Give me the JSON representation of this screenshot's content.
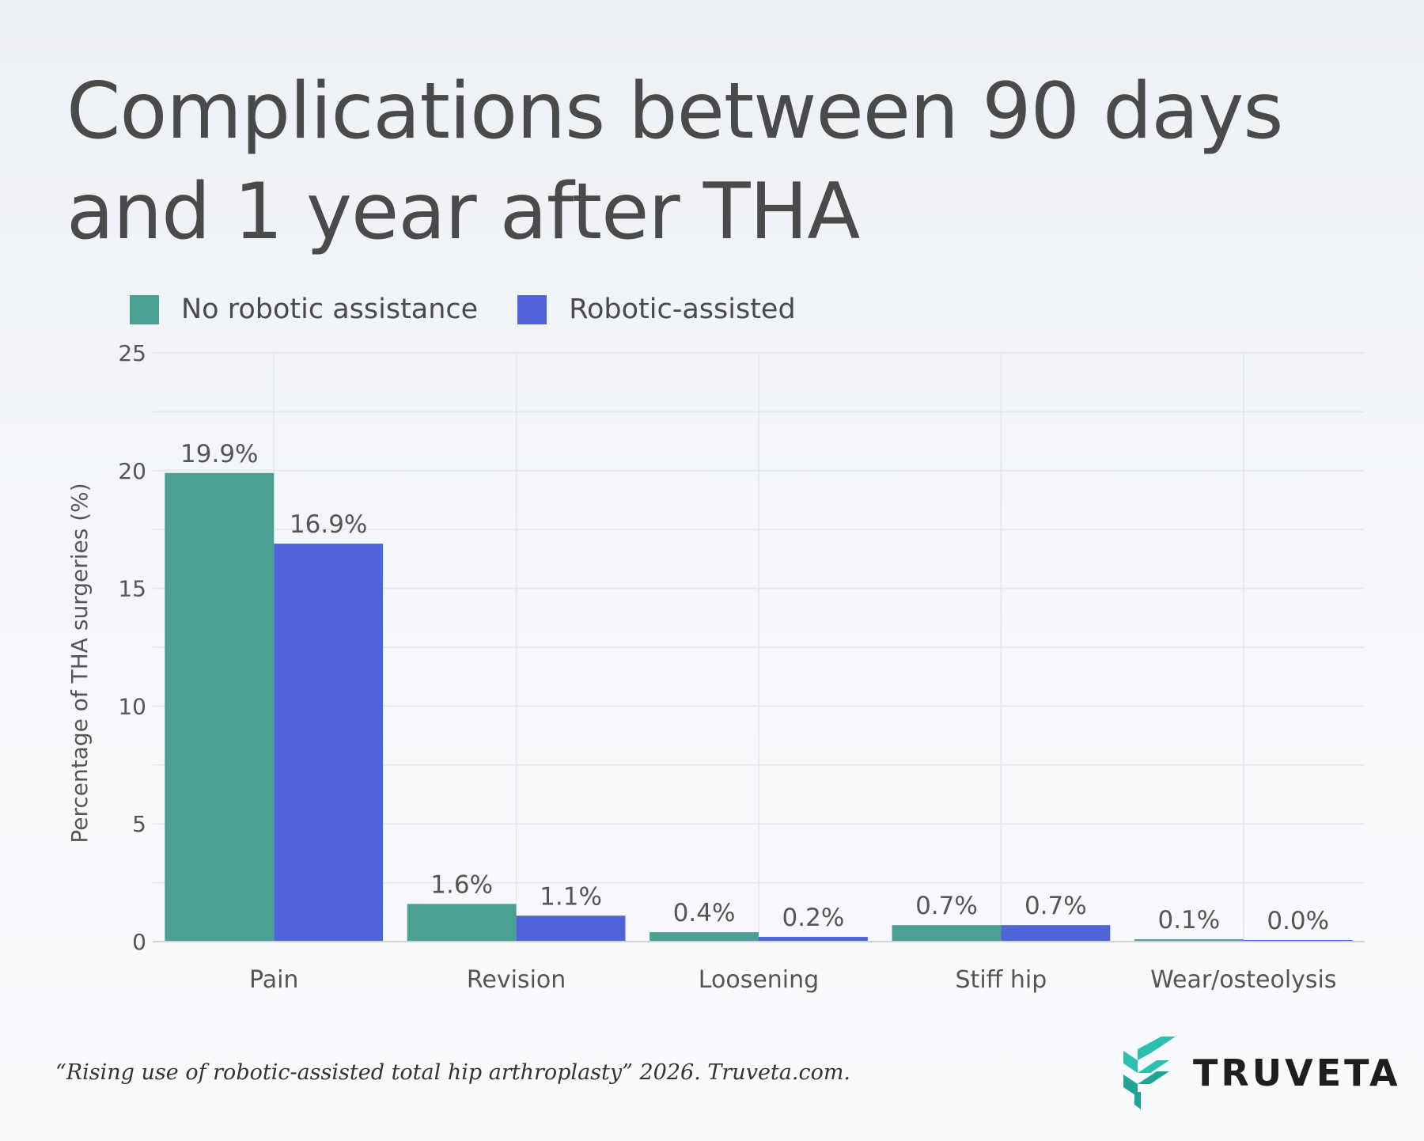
{
  "title": {
    "line1": "Complications between 90 days",
    "line2": "and 1 year after THA"
  },
  "legend": {
    "items": [
      {
        "label": "No robotic assistance",
        "color": "#4aa193"
      },
      {
        "label": "Robotic-assisted",
        "color": "#4e64d7"
      }
    ]
  },
  "chart_data": {
    "type": "bar",
    "categories": [
      "Pain",
      "Revision",
      "Loosening",
      "Stiff hip",
      "Wear/osteolysis"
    ],
    "series": [
      {
        "name": "No robotic assistance",
        "color": "#4aa193",
        "values": [
          19.9,
          1.6,
          0.4,
          0.7,
          0.1
        ],
        "labels": [
          "19.9%",
          "1.6%",
          "0.4%",
          "0.7%",
          "0.1%"
        ]
      },
      {
        "name": "Robotic-assisted",
        "color": "#4e64d7",
        "values": [
          16.9,
          1.1,
          0.2,
          0.7,
          0.0
        ],
        "labels": [
          "16.9%",
          "1.1%",
          "0.2%",
          "0.7%",
          "0.0%"
        ]
      }
    ],
    "ylabel": "Percentage of THA surgeries (%)",
    "xlabel": "",
    "ylim": [
      0,
      25
    ],
    "yticks": [
      0,
      5,
      10,
      15,
      20,
      25
    ],
    "grid": true,
    "legend_position": "top-left"
  },
  "footer": {
    "citation": "“Rising use of robotic-assisted total hip arthroplasty” 2026. Truveta.com.",
    "brand": "TRUVETA",
    "brand_colors": [
      "#2bbfb0",
      "#1fa496"
    ]
  }
}
